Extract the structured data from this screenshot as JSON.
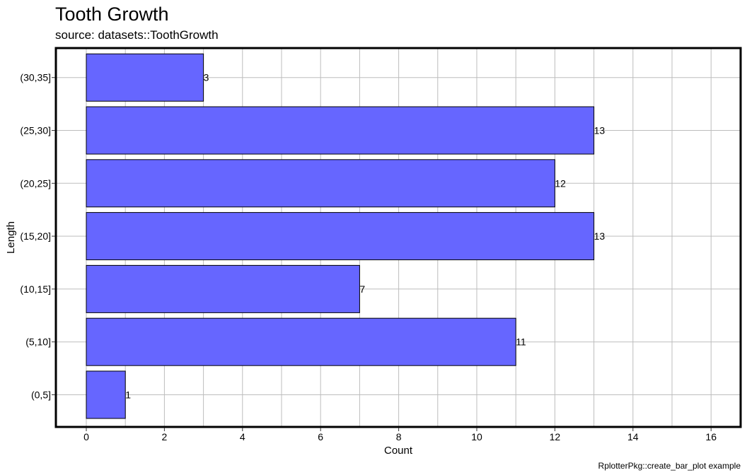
{
  "chart_data": {
    "type": "bar",
    "orientation": "horizontal",
    "title": "Tooth Growth",
    "subtitle": "source: datasets::ToothGrowth",
    "xlabel": "Count",
    "ylabel": "Length",
    "caption": "RplotterPkg::create_bar_plot example",
    "categories": [
      "(0,5]",
      "(5,10]",
      "(10,15]",
      "(15,20]",
      "(20,25]",
      "(25,30]",
      "(30,35]"
    ],
    "values": [
      1,
      11,
      7,
      13,
      12,
      13,
      3
    ],
    "xlim": [
      0,
      16
    ],
    "x_ticks": [
      "0",
      "2",
      "4",
      "6",
      "8",
      "10",
      "12",
      "14",
      "16"
    ],
    "grid": true,
    "colors": {
      "bar_fill": "#6666ff",
      "bar_stroke": "#000000",
      "grid": "#bdbdbd"
    }
  }
}
